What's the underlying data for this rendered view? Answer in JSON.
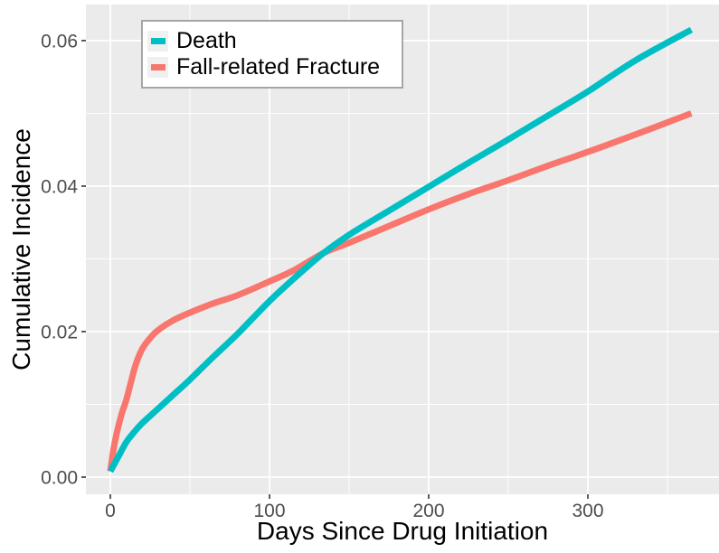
{
  "figure": {
    "background": "#ffffff",
    "panel_background": "#ebebeb",
    "grid_color": "#ffffff",
    "tick_mark_color": "#333333",
    "tick_label_color": "#4d4d4d",
    "axis_title_color": "#000000"
  },
  "legend": {
    "border_color": "#a6a6a6",
    "key_background": "#f0f0f0",
    "items": [
      {
        "label": "Death",
        "color": "#00bfc4"
      },
      {
        "label": "Fall-related Fracture",
        "color": "#f8766d"
      }
    ]
  },
  "chart_data": {
    "type": "line",
    "title": "",
    "xlabel": "Days Since Drug Initiation",
    "ylabel": "Cumulative Incidence",
    "xlim": [
      0,
      365
    ],
    "ylim": [
      0,
      0.062
    ],
    "grid": true,
    "legend_position": "top-left-inside",
    "x_ticks": {
      "values": [
        0,
        100,
        200,
        300
      ],
      "labels": [
        "0",
        "100",
        "200",
        "300"
      ]
    },
    "x_minor": [
      50,
      150,
      250,
      350
    ],
    "y_ticks": {
      "values": [
        0,
        0.02,
        0.04,
        0.06
      ],
      "labels": [
        "0.00",
        "0.02",
        "0.04",
        "0.06"
      ]
    },
    "y_minor": [
      0.01,
      0.03,
      0.05
    ],
    "series": [
      {
        "name": "Death",
        "color": "#00bfc4",
        "points": [
          [
            0,
            0.0008
          ],
          [
            5,
            0.0028
          ],
          [
            10,
            0.0048
          ],
          [
            15,
            0.0062
          ],
          [
            20,
            0.0074
          ],
          [
            30,
            0.0094
          ],
          [
            40,
            0.0114
          ],
          [
            50,
            0.0134
          ],
          [
            65,
            0.0166
          ],
          [
            80,
            0.0197
          ],
          [
            100,
            0.0242
          ],
          [
            120,
            0.0282
          ],
          [
            134,
            0.0308
          ],
          [
            150,
            0.0333
          ],
          [
            175,
            0.0366
          ],
          [
            200,
            0.0399
          ],
          [
            225,
            0.0432
          ],
          [
            250,
            0.0464
          ],
          [
            275,
            0.0497
          ],
          [
            300,
            0.053
          ],
          [
            330,
            0.0573
          ],
          [
            365,
            0.0615
          ]
        ]
      },
      {
        "name": "Fall-related Fracture",
        "color": "#f8766d",
        "points": [
          [
            0,
            0.0008
          ],
          [
            2,
            0.0038
          ],
          [
            4,
            0.006
          ],
          [
            7,
            0.0086
          ],
          [
            10,
            0.0106
          ],
          [
            13,
            0.0131
          ],
          [
            16,
            0.0155
          ],
          [
            20,
            0.0176
          ],
          [
            25,
            0.0191
          ],
          [
            30,
            0.0202
          ],
          [
            40,
            0.0216
          ],
          [
            50,
            0.0226
          ],
          [
            65,
            0.0239
          ],
          [
            80,
            0.025
          ],
          [
            100,
            0.0269
          ],
          [
            115,
            0.0284
          ],
          [
            134,
            0.0308
          ],
          [
            150,
            0.0322
          ],
          [
            175,
            0.0345
          ],
          [
            200,
            0.0368
          ],
          [
            225,
            0.0389
          ],
          [
            250,
            0.0408
          ],
          [
            275,
            0.0428
          ],
          [
            300,
            0.0447
          ],
          [
            330,
            0.0471
          ],
          [
            365,
            0.05
          ]
        ]
      }
    ]
  }
}
